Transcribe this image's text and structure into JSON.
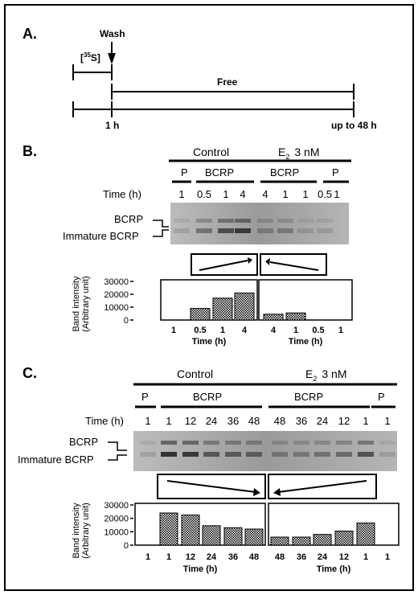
{
  "panel_a": {
    "panel_label": "A.",
    "wash_label": "Wash",
    "isotope_prefix": "35",
    "isotope_element": "S",
    "free_label": "Free",
    "time_start": "1 h",
    "time_end": "up to 48 h"
  },
  "panel_b": {
    "panel_label": "B.",
    "control_label": "Control",
    "e2_label_main": "E",
    "e2_label_sub": "2",
    "e2_label_conc": "3 nM",
    "p_label": "P",
    "bcrp_label": "BCRP",
    "time_label": "Time (h)",
    "time_values": [
      "1",
      "0.5",
      "1",
      "4",
      "4",
      "1",
      "1",
      "0.5",
      "1"
    ],
    "band_bcrp": "BCRP",
    "band_immature": "Immature BCRP",
    "chart_ylabel_line1": "Band intensity",
    "chart_ylabel_line2": "(Arbitrary unit)",
    "chart_xlabel": "Time (h)"
  },
  "panel_c": {
    "panel_label": "C.",
    "control_label": "Control",
    "e2_label_main": "E",
    "e2_label_sub": "2",
    "e2_label_conc": "3 nM",
    "p_label": "P",
    "bcrp_label": "BCRP",
    "time_label": "Time (h)",
    "time_values": [
      "1",
      "1",
      "12",
      "24",
      "36",
      "48",
      "48",
      "36",
      "24",
      "12",
      "1",
      "1"
    ],
    "band_bcrp": "BCRP",
    "band_immature": "Immature BCRP",
    "chart_ylabel_line1": "Band intensity",
    "chart_ylabel_line2": "(Arbitrary unit)",
    "chart_xlabel": "Time (h)"
  },
  "chart_data": [
    {
      "type": "bar",
      "ylabel": "Band intensity (Arbitrary unit)",
      "ylim": [
        0,
        30000
      ],
      "yticks": [
        "30000",
        "20000",
        "10000",
        "0"
      ],
      "xlabel": "Time (h)",
      "groups": [
        {
          "name": "Control",
          "categories": [
            "1",
            "0.5",
            "1",
            "4"
          ],
          "values": [
            0,
            9000,
            17000,
            21000
          ]
        },
        {
          "name": "E2 3 nM",
          "categories": [
            "4",
            "1",
            "0.5",
            "1"
          ],
          "values": [
            4500,
            5500,
            0,
            0
          ]
        }
      ]
    },
    {
      "type": "bar",
      "ylabel": "Band intensity (Arbitrary unit)",
      "ylim": [
        0,
        30000
      ],
      "yticks": [
        "30000",
        "20000",
        "10000",
        "0"
      ],
      "xlabel": "Time (h)",
      "groups": [
        {
          "name": "Control",
          "categories": [
            "1",
            "1",
            "12",
            "24",
            "36",
            "48"
          ],
          "values": [
            0,
            24000,
            22500,
            14500,
            13000,
            12000
          ]
        },
        {
          "name": "E2 3 nM",
          "categories": [
            "48",
            "36",
            "24",
            "12",
            "1",
            "1"
          ],
          "values": [
            6000,
            6000,
            8000,
            10500,
            16500,
            0
          ]
        }
      ]
    }
  ]
}
